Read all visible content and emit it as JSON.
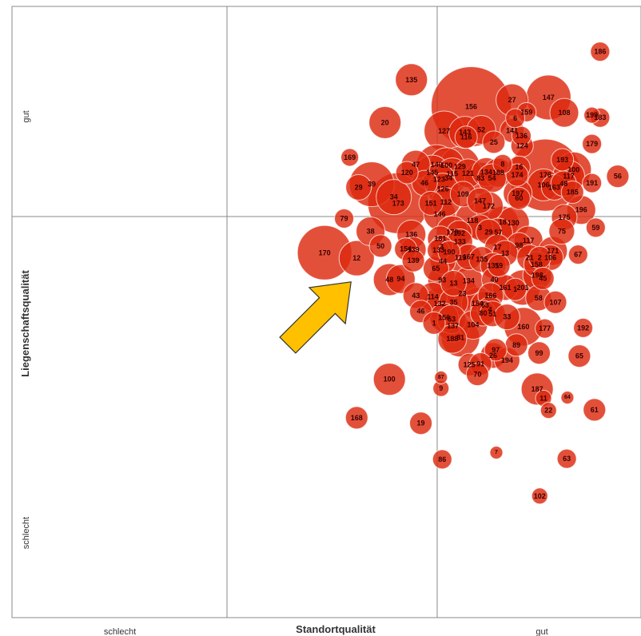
{
  "chart_data": {
    "type": "scatter",
    "title": "",
    "xlabel": "Standortqualität",
    "ylabel": "Liegenschaftsqualität",
    "x_ticks": {
      "low": "schlecht",
      "high": "gut"
    },
    "y_ticks": {
      "low": "schlecht",
      "high": "gut"
    },
    "xlim": [
      0,
      1
    ],
    "ylim": [
      0,
      1
    ],
    "grid": true,
    "bubble_color": "#dd2a0f",
    "bubble_stroke": "#ffffff",
    "annotation": {
      "type": "arrow",
      "color": "#ffc000",
      "direction": "up-right"
    },
    "points": [
      {
        "label": "186",
        "x": 0.935,
        "y": 0.926,
        "r": 12
      },
      {
        "label": "135",
        "x": 0.635,
        "y": 0.88,
        "r": 20
      },
      {
        "label": "156",
        "x": 0.73,
        "y": 0.836,
        "r": 50
      },
      {
        "label": "27",
        "x": 0.795,
        "y": 0.847,
        "r": 20
      },
      {
        "label": "147",
        "x": 0.853,
        "y": 0.851,
        "r": 28
      },
      {
        "label": "108",
        "x": 0.878,
        "y": 0.826,
        "r": 18
      },
      {
        "label": "159",
        "x": 0.818,
        "y": 0.827,
        "r": 12
      },
      {
        "label": "6",
        "x": 0.8,
        "y": 0.817,
        "r": 12
      },
      {
        "label": "183",
        "x": 0.935,
        "y": 0.818,
        "r": 12
      },
      {
        "label": "199",
        "x": 0.922,
        "y": 0.822,
        "r": 10
      },
      {
        "label": "20",
        "x": 0.593,
        "y": 0.81,
        "r": 20
      },
      {
        "label": "127",
        "x": 0.687,
        "y": 0.796,
        "r": 25
      },
      {
        "label": "143",
        "x": 0.72,
        "y": 0.794,
        "r": 20
      },
      {
        "label": "52",
        "x": 0.746,
        "y": 0.798,
        "r": 18
      },
      {
        "label": "116",
        "x": 0.722,
        "y": 0.786,
        "r": 14
      },
      {
        "label": "141",
        "x": 0.795,
        "y": 0.797,
        "r": 15
      },
      {
        "label": "136",
        "x": 0.81,
        "y": 0.788,
        "r": 12
      },
      {
        "label": "25",
        "x": 0.766,
        "y": 0.778,
        "r": 14
      },
      {
        "label": "124",
        "x": 0.811,
        "y": 0.772,
        "r": 14
      },
      {
        "label": "179",
        "x": 0.922,
        "y": 0.775,
        "r": 12
      },
      {
        "label": "169",
        "x": 0.537,
        "y": 0.753,
        "r": 11
      },
      {
        "label": "47",
        "x": 0.642,
        "y": 0.741,
        "r": 18
      },
      {
        "label": "120",
        "x": 0.628,
        "y": 0.728,
        "r": 14
      },
      {
        "label": "140",
        "x": 0.675,
        "y": 0.741,
        "r": 25
      },
      {
        "label": "100",
        "x": 0.691,
        "y": 0.74,
        "r": 22
      },
      {
        "label": "129",
        "x": 0.712,
        "y": 0.738,
        "r": 25
      },
      {
        "label": "145",
        "x": 0.668,
        "y": 0.728,
        "r": 22
      },
      {
        "label": "115",
        "x": 0.7,
        "y": 0.726,
        "r": 20
      },
      {
        "label": "121",
        "x": 0.725,
        "y": 0.727,
        "r": 18
      },
      {
        "label": "134",
        "x": 0.754,
        "y": 0.729,
        "r": 18
      },
      {
        "label": "188",
        "x": 0.773,
        "y": 0.728,
        "r": 18
      },
      {
        "label": "8",
        "x": 0.78,
        "y": 0.742,
        "r": 12
      },
      {
        "label": "16",
        "x": 0.806,
        "y": 0.737,
        "r": 14
      },
      {
        "label": "174",
        "x": 0.803,
        "y": 0.724,
        "r": 14
      },
      {
        "label": "193",
        "x": 0.875,
        "y": 0.749,
        "r": 14
      },
      {
        "label": "100",
        "x": 0.893,
        "y": 0.733,
        "r": 22
      },
      {
        "label": "176",
        "x": 0.848,
        "y": 0.724,
        "r": 45
      },
      {
        "label": "117",
        "x": 0.885,
        "y": 0.722,
        "r": 20
      },
      {
        "label": "56",
        "x": 0.963,
        "y": 0.722,
        "r": 14
      },
      {
        "label": "123",
        "x": 0.679,
        "y": 0.717,
        "r": 20
      },
      {
        "label": "34",
        "x": 0.694,
        "y": 0.719,
        "r": 22
      },
      {
        "label": "83",
        "x": 0.745,
        "y": 0.719,
        "r": 20
      },
      {
        "label": "54",
        "x": 0.763,
        "y": 0.719,
        "r": 18
      },
      {
        "label": "106",
        "x": 0.845,
        "y": 0.708,
        "r": 20
      },
      {
        "label": "163",
        "x": 0.862,
        "y": 0.704,
        "r": 16
      },
      {
        "label": "48",
        "x": 0.877,
        "y": 0.71,
        "r": 16
      },
      {
        "label": "191",
        "x": 0.922,
        "y": 0.711,
        "r": 12
      },
      {
        "label": "29",
        "x": 0.551,
        "y": 0.704,
        "r": 16
      },
      {
        "label": "39",
        "x": 0.572,
        "y": 0.709,
        "r": 28
      },
      {
        "label": "46",
        "x": 0.656,
        "y": 0.711,
        "r": 16
      },
      {
        "label": "126",
        "x": 0.685,
        "y": 0.701,
        "r": 20
      },
      {
        "label": "109",
        "x": 0.717,
        "y": 0.693,
        "r": 16
      },
      {
        "label": "185",
        "x": 0.891,
        "y": 0.696,
        "r": 14
      },
      {
        "label": "34",
        "x": 0.607,
        "y": 0.688,
        "r": 22
      },
      {
        "label": "173",
        "x": 0.614,
        "y": 0.678,
        "r": 38
      },
      {
        "label": "197",
        "x": 0.804,
        "y": 0.694,
        "r": 18
      },
      {
        "label": "60",
        "x": 0.806,
        "y": 0.686,
        "r": 14
      },
      {
        "label": "151",
        "x": 0.666,
        "y": 0.678,
        "r": 15
      },
      {
        "label": "112",
        "x": 0.69,
        "y": 0.68,
        "r": 18
      },
      {
        "label": "147",
        "x": 0.744,
        "y": 0.682,
        "r": 16
      },
      {
        "label": "172",
        "x": 0.758,
        "y": 0.673,
        "r": 18
      },
      {
        "label": "196",
        "x": 0.905,
        "y": 0.667,
        "r": 18
      },
      {
        "label": "79",
        "x": 0.528,
        "y": 0.653,
        "r": 12
      },
      {
        "label": "146",
        "x": 0.68,
        "y": 0.66,
        "r": 20
      },
      {
        "label": "118",
        "x": 0.732,
        "y": 0.65,
        "r": 22
      },
      {
        "label": "18",
        "x": 0.78,
        "y": 0.647,
        "r": 20
      },
      {
        "label": "130",
        "x": 0.797,
        "y": 0.646,
        "r": 20
      },
      {
        "label": "175",
        "x": 0.878,
        "y": 0.655,
        "r": 16
      },
      {
        "label": "3",
        "x": 0.744,
        "y": 0.638,
        "r": 16
      },
      {
        "label": "59",
        "x": 0.928,
        "y": 0.638,
        "r": 12
      },
      {
        "label": "38",
        "x": 0.57,
        "y": 0.632,
        "r": 18
      },
      {
        "label": "136",
        "x": 0.635,
        "y": 0.627,
        "r": 18
      },
      {
        "label": "178",
        "x": 0.7,
        "y": 0.631,
        "r": 20
      },
      {
        "label": "192",
        "x": 0.711,
        "y": 0.629,
        "r": 16
      },
      {
        "label": "29",
        "x": 0.758,
        "y": 0.631,
        "r": 16
      },
      {
        "label": "57",
        "x": 0.773,
        "y": 0.63,
        "r": 18
      },
      {
        "label": "75",
        "x": 0.874,
        "y": 0.632,
        "r": 16
      },
      {
        "label": "181",
        "x": 0.681,
        "y": 0.62,
        "r": 16
      },
      {
        "label": "117",
        "x": 0.821,
        "y": 0.617,
        "r": 18
      },
      {
        "label": "98",
        "x": 0.806,
        "y": 0.609,
        "r": 16
      },
      {
        "label": "50",
        "x": 0.586,
        "y": 0.608,
        "r": 14
      },
      {
        "label": "3",
        "x": 0.683,
        "y": 0.607,
        "r": 14
      },
      {
        "label": "133",
        "x": 0.712,
        "y": 0.615,
        "r": 16
      },
      {
        "label": "170",
        "x": 0.497,
        "y": 0.597,
        "r": 34
      },
      {
        "label": "12",
        "x": 0.548,
        "y": 0.588,
        "r": 22
      },
      {
        "label": "154",
        "x": 0.626,
        "y": 0.603,
        "r": 14
      },
      {
        "label": "139",
        "x": 0.638,
        "y": 0.602,
        "r": 16
      },
      {
        "label": "133",
        "x": 0.678,
        "y": 0.601,
        "r": 14
      },
      {
        "label": "190",
        "x": 0.695,
        "y": 0.598,
        "r": 14
      },
      {
        "label": "17",
        "x": 0.772,
        "y": 0.606,
        "r": 16
      },
      {
        "label": "13",
        "x": 0.784,
        "y": 0.596,
        "r": 16
      },
      {
        "label": "171",
        "x": 0.86,
        "y": 0.6,
        "r": 18
      },
      {
        "label": "67",
        "x": 0.9,
        "y": 0.594,
        "r": 12
      },
      {
        "label": "139",
        "x": 0.638,
        "y": 0.584,
        "r": 14
      },
      {
        "label": "44",
        "x": 0.685,
        "y": 0.583,
        "r": 16
      },
      {
        "label": "119",
        "x": 0.713,
        "y": 0.589,
        "r": 18
      },
      {
        "label": "167",
        "x": 0.726,
        "y": 0.59,
        "r": 16
      },
      {
        "label": "135",
        "x": 0.747,
        "y": 0.586,
        "r": 16
      },
      {
        "label": "131",
        "x": 0.765,
        "y": 0.576,
        "r": 16
      },
      {
        "label": "59",
        "x": 0.774,
        "y": 0.576,
        "r": 14
      },
      {
        "label": "21",
        "x": 0.823,
        "y": 0.589,
        "r": 16
      },
      {
        "label": "2",
        "x": 0.839,
        "y": 0.589,
        "r": 14
      },
      {
        "label": "106",
        "x": 0.856,
        "y": 0.589,
        "r": 16
      },
      {
        "label": "158",
        "x": 0.834,
        "y": 0.578,
        "r": 16
      },
      {
        "label": "65",
        "x": 0.674,
        "y": 0.571,
        "r": 16
      },
      {
        "label": "198",
        "x": 0.835,
        "y": 0.56,
        "r": 18
      },
      {
        "label": "45",
        "x": 0.844,
        "y": 0.555,
        "r": 14
      },
      {
        "label": "48",
        "x": 0.6,
        "y": 0.553,
        "r": 20
      },
      {
        "label": "94",
        "x": 0.618,
        "y": 0.554,
        "r": 18
      },
      {
        "label": "93",
        "x": 0.684,
        "y": 0.552,
        "r": 18
      },
      {
        "label": "13",
        "x": 0.702,
        "y": 0.547,
        "r": 16
      },
      {
        "label": "134",
        "x": 0.726,
        "y": 0.551,
        "r": 18
      },
      {
        "label": "40",
        "x": 0.767,
        "y": 0.553,
        "r": 16
      },
      {
        "label": "161",
        "x": 0.784,
        "y": 0.54,
        "r": 16
      },
      {
        "label": "201",
        "x": 0.812,
        "y": 0.54,
        "r": 22
      },
      {
        "label": "1",
        "x": 0.8,
        "y": 0.537,
        "r": 14
      },
      {
        "label": "43",
        "x": 0.642,
        "y": 0.527,
        "r": 16
      },
      {
        "label": "114",
        "x": 0.669,
        "y": 0.525,
        "r": 18
      },
      {
        "label": "23",
        "x": 0.716,
        "y": 0.53,
        "r": 20
      },
      {
        "label": "166",
        "x": 0.761,
        "y": 0.527,
        "r": 16
      },
      {
        "label": "58",
        "x": 0.837,
        "y": 0.523,
        "r": 16
      },
      {
        "label": "107",
        "x": 0.864,
        "y": 0.516,
        "r": 14
      },
      {
        "label": "132",
        "x": 0.68,
        "y": 0.514,
        "r": 20
      },
      {
        "label": "35",
        "x": 0.702,
        "y": 0.516,
        "r": 18
      },
      {
        "label": "154",
        "x": 0.74,
        "y": 0.514,
        "r": 20
      },
      {
        "label": "63",
        "x": 0.752,
        "y": 0.511,
        "r": 18
      },
      {
        "label": "4",
        "x": 0.76,
        "y": 0.504,
        "r": 16
      },
      {
        "label": "46",
        "x": 0.65,
        "y": 0.501,
        "r": 14
      },
      {
        "label": "156",
        "x": 0.687,
        "y": 0.491,
        "r": 18
      },
      {
        "label": "80",
        "x": 0.749,
        "y": 0.498,
        "r": 16
      },
      {
        "label": "51",
        "x": 0.764,
        "y": 0.497,
        "r": 16
      },
      {
        "label": "33",
        "x": 0.787,
        "y": 0.492,
        "r": 16
      },
      {
        "label": "53",
        "x": 0.699,
        "y": 0.488,
        "r": 18
      },
      {
        "label": "137",
        "x": 0.701,
        "y": 0.477,
        "r": 20
      },
      {
        "label": "1",
        "x": 0.671,
        "y": 0.482,
        "r": 14
      },
      {
        "label": "104",
        "x": 0.733,
        "y": 0.479,
        "r": 18
      },
      {
        "label": "160",
        "x": 0.813,
        "y": 0.476,
        "r": 24
      },
      {
        "label": "177",
        "x": 0.847,
        "y": 0.473,
        "r": 12
      },
      {
        "label": "192",
        "x": 0.908,
        "y": 0.474,
        "r": 12
      },
      {
        "label": "188",
        "x": 0.7,
        "y": 0.456,
        "r": 18
      },
      {
        "label": "81",
        "x": 0.713,
        "y": 0.458,
        "r": 24
      },
      {
        "label": "89",
        "x": 0.802,
        "y": 0.446,
        "r": 14
      },
      {
        "label": "97",
        "x": 0.769,
        "y": 0.438,
        "r": 14
      },
      {
        "label": "26",
        "x": 0.765,
        "y": 0.429,
        "r": 16
      },
      {
        "label": "99",
        "x": 0.838,
        "y": 0.433,
        "r": 14
      },
      {
        "label": "65",
        "x": 0.902,
        "y": 0.428,
        "r": 14
      },
      {
        "label": "194",
        "x": 0.787,
        "y": 0.421,
        "r": 16
      },
      {
        "label": "125",
        "x": 0.727,
        "y": 0.414,
        "r": 14
      },
      {
        "label": "91",
        "x": 0.745,
        "y": 0.415,
        "r": 14
      },
      {
        "label": "70",
        "x": 0.74,
        "y": 0.398,
        "r": 14
      },
      {
        "label": "100",
        "x": 0.6,
        "y": 0.39,
        "r": 20
      },
      {
        "label": "87",
        "x": 0.682,
        "y": 0.393,
        "r": 8
      },
      {
        "label": "9",
        "x": 0.682,
        "y": 0.375,
        "r": 10
      },
      {
        "label": "187",
        "x": 0.835,
        "y": 0.374,
        "r": 20
      },
      {
        "label": "11",
        "x": 0.845,
        "y": 0.359,
        "r": 10
      },
      {
        "label": "64",
        "x": 0.883,
        "y": 0.36,
        "r": 8
      },
      {
        "label": "22",
        "x": 0.853,
        "y": 0.339,
        "r": 10
      },
      {
        "label": "61",
        "x": 0.926,
        "y": 0.34,
        "r": 14
      },
      {
        "label": "168",
        "x": 0.548,
        "y": 0.327,
        "r": 14
      },
      {
        "label": "19",
        "x": 0.65,
        "y": 0.318,
        "r": 14
      },
      {
        "label": "7",
        "x": 0.77,
        "y": 0.27,
        "r": 8
      },
      {
        "label": "86",
        "x": 0.684,
        "y": 0.259,
        "r": 12
      },
      {
        "label": "63",
        "x": 0.882,
        "y": 0.26,
        "r": 12
      },
      {
        "label": "102",
        "x": 0.839,
        "y": 0.199,
        "r": 10
      }
    ]
  }
}
